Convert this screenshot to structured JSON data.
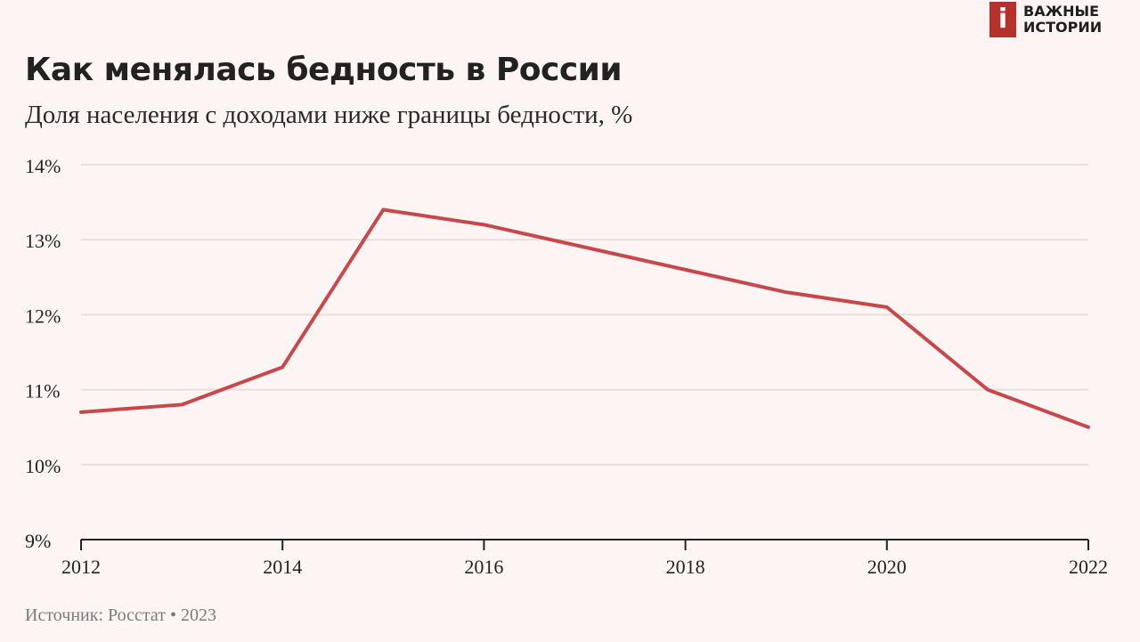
{
  "logo": {
    "glyph": "i",
    "line1": "ВАЖНЫЕ",
    "line2": "ИСТОРИИ"
  },
  "header": {
    "title": "Как менялась бедность в России",
    "subtitle": "Доля населения с доходами ниже границы бедности, %"
  },
  "footer": {
    "source": "Источник: Росстат • 2023"
  },
  "colors": {
    "line": "#c8474b",
    "grid": "#e8dfdc",
    "axis": "#222222",
    "background": "#fdf5f3"
  },
  "chart_data": {
    "type": "line",
    "title": "Как менялась бедность в России",
    "subtitle": "Доля населения с доходами ниже границы бедности, %",
    "x": [
      2012,
      2013,
      2014,
      2015,
      2016,
      2017,
      2018,
      2019,
      2020,
      2021,
      2022
    ],
    "series": [
      {
        "values": [
          10.7,
          10.8,
          11.3,
          13.4,
          13.2,
          12.9,
          12.6,
          12.3,
          12.1,
          11.0,
          10.5
        ]
      }
    ],
    "xlim": [
      2012,
      2022
    ],
    "ylim": [
      9,
      14
    ],
    "x_ticks": [
      {
        "value": 2012,
        "label": "2012"
      },
      {
        "value": 2014,
        "label": "2014"
      },
      {
        "value": 2016,
        "label": "2016"
      },
      {
        "value": 2018,
        "label": "2018"
      },
      {
        "value": 2020,
        "label": "2020"
      },
      {
        "value": 2022,
        "label": "2022"
      }
    ],
    "y_ticks": [
      {
        "value": 14,
        "label": "14%"
      },
      {
        "value": 13,
        "label": "13%"
      },
      {
        "value": 12,
        "label": "12%"
      },
      {
        "value": 11,
        "label": "11%"
      },
      {
        "value": 10,
        "label": "10%"
      },
      {
        "value": 9,
        "label": "9%"
      }
    ],
    "grid": true,
    "legend": "none"
  }
}
